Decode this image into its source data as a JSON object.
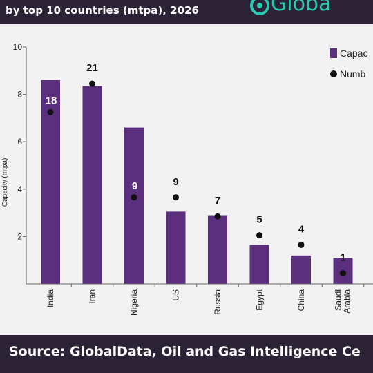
{
  "header": {
    "title": "by top 10 countries (mtpa), 2026",
    "logo_text": "Globa"
  },
  "footer": {
    "source": "Source: GlobalData, Oil and Gas Intelligence Ce"
  },
  "chart_data": {
    "type": "bar",
    "categories": [
      "India",
      "Iran",
      "Nigeria",
      "US",
      "Russia",
      "Egypt",
      "China",
      "Saudi Arabia"
    ],
    "series": [
      {
        "name": "Capac",
        "values": [
          8.6,
          8.35,
          6.6,
          3.05,
          2.9,
          1.65,
          1.2,
          1.1
        ],
        "color": "#5c2e7e"
      }
    ],
    "points": {
      "name": "Numb",
      "values": [
        7.25,
        8.45,
        3.65,
        3.65,
        2.85,
        2.05,
        1.65,
        0.45
      ],
      "labels": [
        "18",
        "21",
        "9",
        "9",
        "7",
        "5",
        "4",
        "1"
      ]
    },
    "ylabel": "Capacity (mtpa)",
    "ylim": [
      0,
      10
    ],
    "yticks": [
      "2",
      "4",
      "6",
      "8",
      "10"
    ],
    "legend_position": "top-right",
    "grid": false
  }
}
